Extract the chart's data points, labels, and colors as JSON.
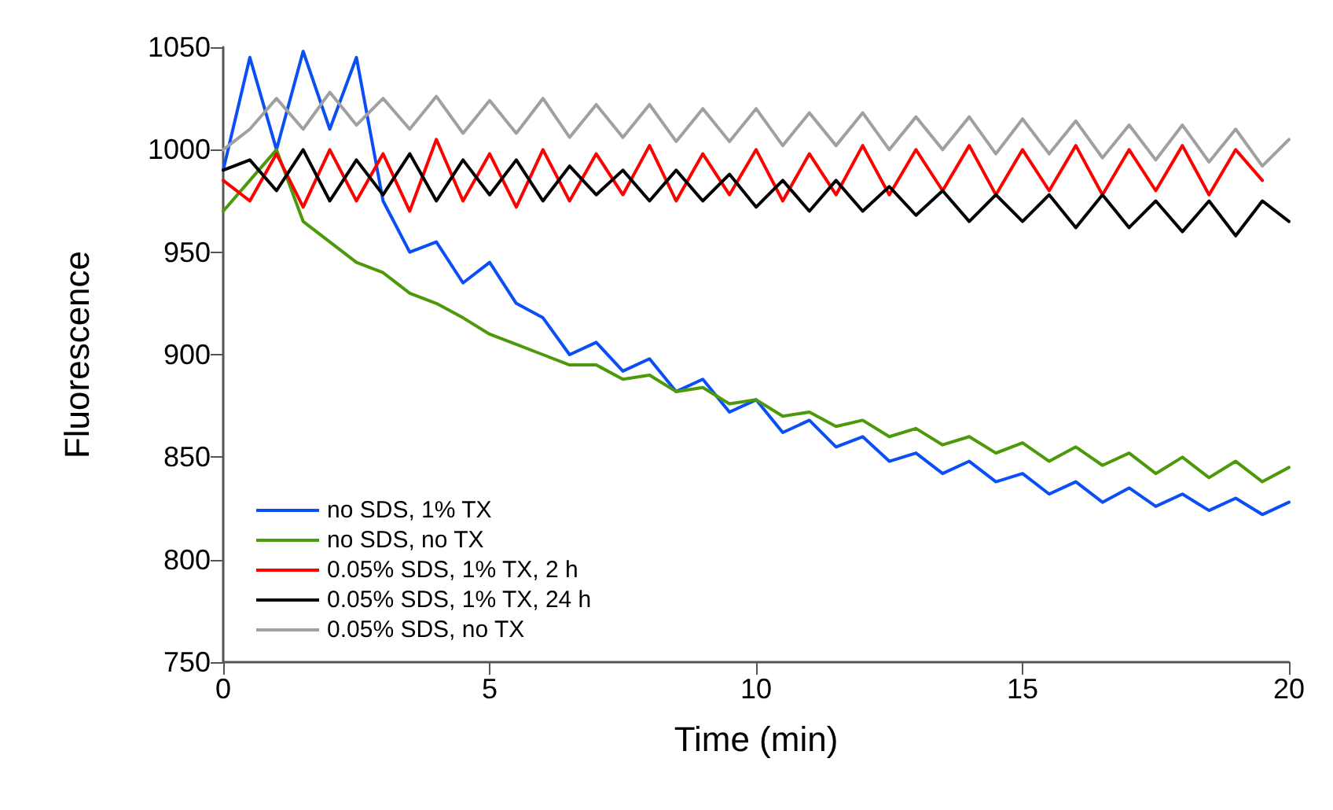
{
  "chart_data": {
    "type": "line",
    "xlabel": "Time (min)",
    "ylabel": "Fluorescence",
    "xlim": [
      0,
      20
    ],
    "xticks": [
      0,
      5,
      10,
      15,
      20
    ],
    "ylim": [
      750,
      1050
    ],
    "yticks": [
      750,
      800,
      850,
      900,
      950,
      1000,
      1050
    ],
    "grid": false,
    "legend": "bottom left",
    "marker": "none",
    "line_style": "solid",
    "x": [
      0,
      0.5,
      1,
      1.5,
      2,
      2.5,
      3,
      3.5,
      4,
      4.5,
      5,
      5.5,
      6,
      6.5,
      7,
      7.5,
      8,
      8.5,
      9,
      9.5,
      10,
      10.5,
      11,
      11.5,
      12,
      12.5,
      13,
      13.5,
      14,
      14.5,
      15,
      15.5,
      16,
      16.5,
      17,
      17.5,
      18,
      18.5,
      19,
      19.5,
      20
    ],
    "series": [
      {
        "name": "no SDS, 1% TX",
        "color": "#0a4ff5",
        "values": [
          990,
          1045,
          1000,
          1048,
          1010,
          1045,
          975,
          950,
          955,
          935,
          945,
          925,
          918,
          900,
          906,
          892,
          898,
          882,
          888,
          872,
          878,
          862,
          868,
          855,
          860,
          848,
          852,
          842,
          848,
          838,
          842,
          832,
          838,
          828,
          835,
          826,
          832,
          824,
          830,
          822,
          828
        ]
      },
      {
        "name": "no SDS, no TX",
        "color": "#4c9a0a",
        "values": [
          970,
          985,
          1000,
          965,
          955,
          945,
          940,
          930,
          925,
          918,
          910,
          905,
          900,
          895,
          895,
          888,
          890,
          882,
          884,
          876,
          878,
          870,
          872,
          865,
          868,
          860,
          864,
          856,
          860,
          852,
          857,
          848,
          855,
          846,
          852,
          842,
          850,
          840,
          848,
          838,
          845
        ]
      },
      {
        "name": "0.05% SDS, 1% TX, 2 h",
        "color": "#ff0000",
        "x": [
          0,
          0.5,
          1,
          1.5,
          2,
          2.5,
          3,
          3.5,
          4,
          4.5,
          5,
          5.5,
          6,
          6.5,
          7,
          7.5,
          8,
          8.5,
          9,
          9.5,
          10,
          10.5,
          11,
          11.5,
          12,
          12.5,
          13,
          13.5,
          14,
          14.5,
          15,
          15.5,
          16,
          16.5,
          17,
          17.5,
          18,
          18.5,
          19,
          19.5
        ],
        "values": [
          985,
          975,
          998,
          972,
          1000,
          975,
          998,
          970,
          1005,
          975,
          998,
          972,
          1000,
          975,
          998,
          978,
          1002,
          975,
          998,
          978,
          1000,
          975,
          998,
          978,
          1002,
          978,
          1000,
          980,
          1002,
          978,
          1000,
          980,
          1002,
          978,
          1000,
          980,
          1002,
          978,
          1000,
          985
        ]
      },
      {
        "name": "0.05% SDS, 1% TX, 24 h",
        "color": "#000000",
        "values": [
          990,
          995,
          980,
          1000,
          975,
          995,
          978,
          998,
          975,
          995,
          978,
          995,
          975,
          992,
          978,
          990,
          975,
          990,
          975,
          988,
          972,
          985,
          970,
          985,
          970,
          982,
          968,
          980,
          965,
          978,
          965,
          978,
          962,
          978,
          962,
          975,
          960,
          975,
          958,
          975,
          965
        ]
      },
      {
        "name": "0.05% SDS, no TX",
        "color": "#a0a0a0",
        "values": [
          1000,
          1010,
          1025,
          1010,
          1028,
          1012,
          1025,
          1010,
          1026,
          1008,
          1024,
          1008,
          1025,
          1006,
          1022,
          1006,
          1022,
          1004,
          1020,
          1004,
          1020,
          1002,
          1018,
          1002,
          1018,
          1000,
          1016,
          1000,
          1016,
          998,
          1015,
          998,
          1014,
          996,
          1012,
          995,
          1012,
          994,
          1010,
          992,
          1005
        ]
      }
    ]
  }
}
